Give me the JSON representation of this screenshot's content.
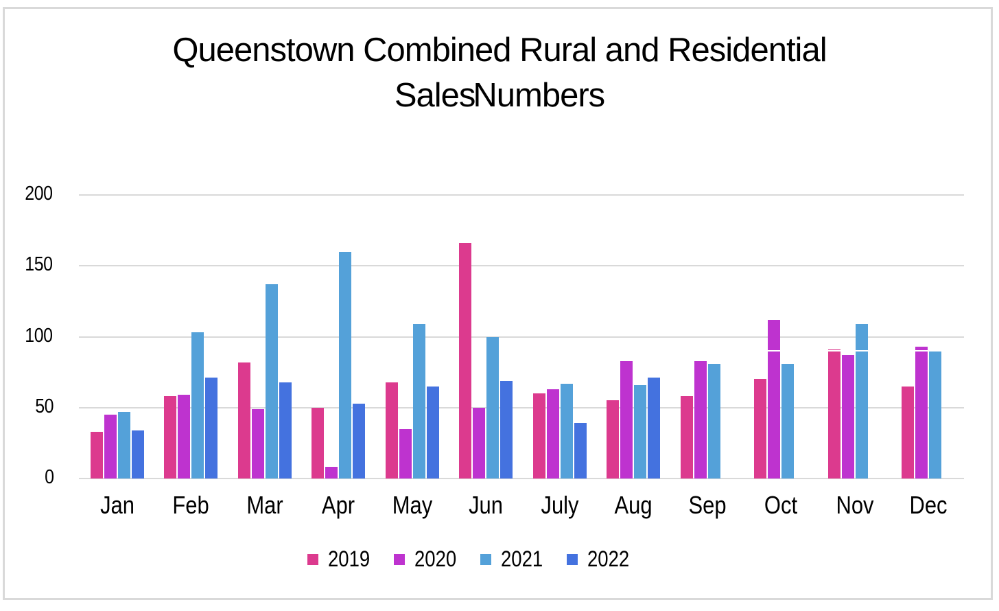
{
  "title": {
    "line1": "Queenstown Combined Rural and Residential",
    "line2": "Sales Numbers"
  },
  "chart_data": {
    "type": "bar",
    "title": "Queenstown Combined Rural and Residential Sales Numbers",
    "categories": [
      "Jan",
      "Feb",
      "Mar",
      "Apr",
      "May",
      "Jun",
      "July",
      "Aug",
      "Sep",
      "Oct",
      "Nov",
      "Dec"
    ],
    "series": [
      {
        "name": "2019",
        "color": "#DC3A8E",
        "values": [
          33,
          58,
          82,
          50,
          68,
          166,
          60,
          55,
          58,
          70,
          91,
          65
        ]
      },
      {
        "name": "2020",
        "color": "#BE33CF",
        "values": [
          45,
          59,
          49,
          8,
          35,
          50,
          63,
          83,
          83,
          112,
          87,
          93
        ]
      },
      {
        "name": "2021",
        "color": "#54A1D9",
        "values": [
          47,
          103,
          137,
          160,
          109,
          100,
          67,
          66,
          81,
          81,
          109,
          90
        ]
      },
      {
        "name": "2022",
        "color": "#4472DF",
        "values": [
          34,
          71,
          68,
          53,
          65,
          69,
          39,
          71,
          null,
          null,
          null,
          null
        ]
      }
    ],
    "xlabel": "",
    "ylabel": "",
    "ylim": [
      0,
      200
    ],
    "yticks": [
      0,
      50,
      100,
      150,
      200
    ],
    "grid": true,
    "gridline_color": "#d9d9d9",
    "legend_position": "bottom",
    "white_overlay_line": {
      "value": 90,
      "start_category": "Oct",
      "end_category": "Dec"
    }
  }
}
